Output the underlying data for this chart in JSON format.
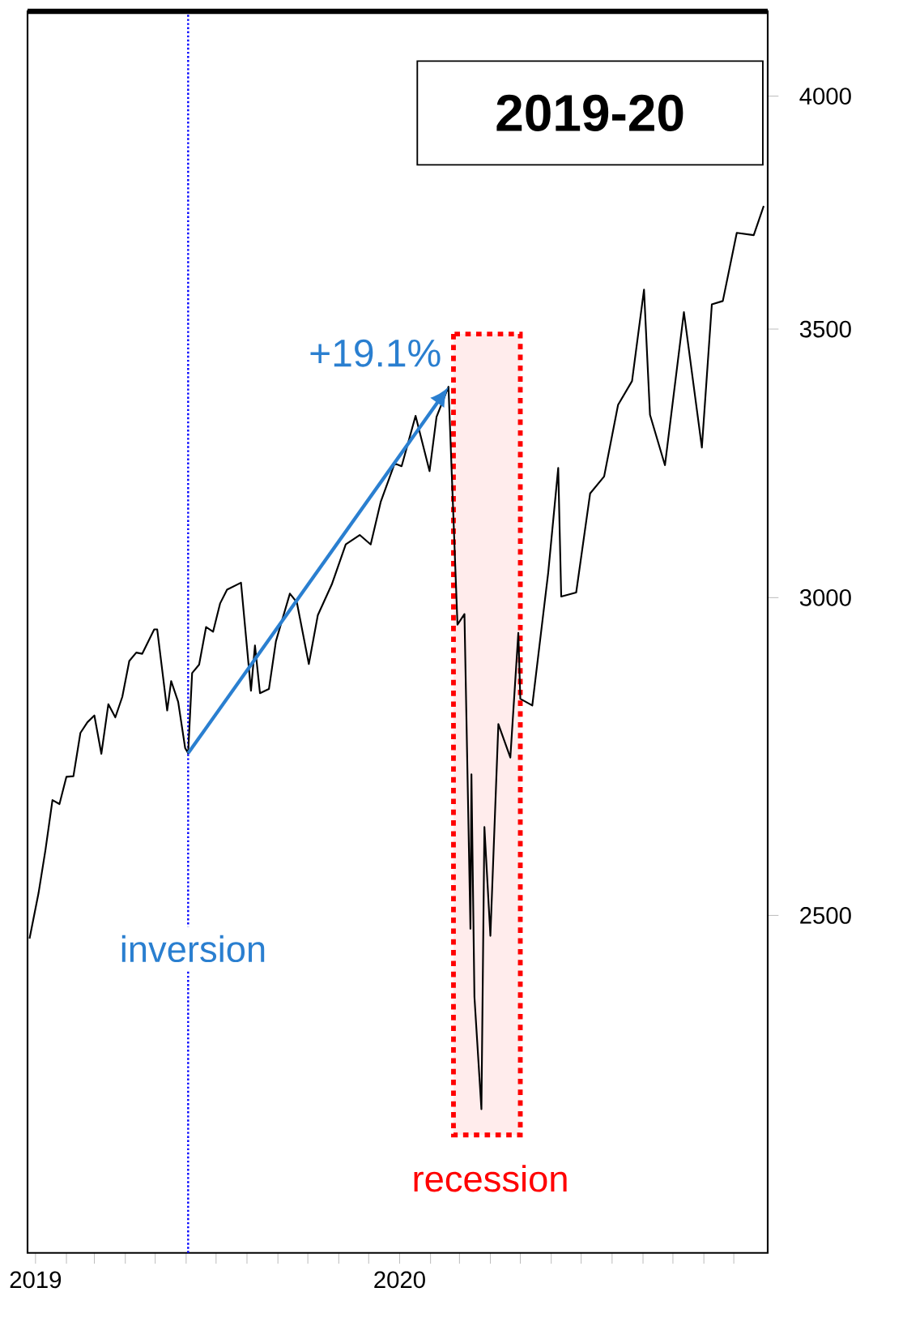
{
  "chart_data": {
    "type": "line",
    "title": "2019-20",
    "color": "#000000",
    "log": true,
    "x": [
      "2018-12-26",
      "2019-01-04",
      "2019-01-11",
      "2019-01-18",
      "2019-01-25",
      "2019-02-01",
      "2019-02-08",
      "2019-02-15",
      "2019-02-22",
      "2019-03-01",
      "2019-03-08",
      "2019-03-15",
      "2019-03-22",
      "2019-03-29",
      "2019-04-05",
      "2019-04-12",
      "2019-04-18",
      "2019-04-30",
      "2019-05-03",
      "2019-05-13",
      "2019-05-17",
      "2019-05-24",
      "2019-05-31",
      "2019-06-03",
      "2019-06-07",
      "2019-06-14",
      "2019-06-21",
      "2019-06-28",
      "2019-07-05",
      "2019-07-12",
      "2019-07-26",
      "2019-08-05",
      "2019-08-09",
      "2019-08-14",
      "2019-08-23",
      "2019-08-30",
      "2019-09-13",
      "2019-09-20",
      "2019-10-02",
      "2019-10-11",
      "2019-10-25",
      "2019-11-08",
      "2019-11-22",
      "2019-12-03",
      "2019-12-13",
      "2019-12-27",
      "2020-01-03",
      "2020-01-17",
      "2020-01-31",
      "2020-02-07",
      "2020-02-19",
      "2020-02-28",
      "2020-03-06",
      "2020-03-12",
      "2020-03-13",
      "2020-03-16",
      "2020-03-23",
      "2020-03-26",
      "2020-04-01",
      "2020-04-09",
      "2020-04-21",
      "2020-04-29",
      "2020-05-01",
      "2020-05-13",
      "2020-05-29",
      "2020-06-08",
      "2020-06-11",
      "2020-06-26",
      "2020-07-10",
      "2020-07-24",
      "2020-08-07",
      "2020-08-21",
      "2020-09-02",
      "2020-09-08",
      "2020-09-23",
      "2020-10-12",
      "2020-10-30",
      "2020-11-09",
      "2020-11-20",
      "2020-12-04",
      "2020-12-21",
      "2020-12-31"
    ],
    "values": [
      2467,
      2532,
      2596,
      2671,
      2665,
      2707,
      2708,
      2776,
      2793,
      2804,
      2743,
      2822,
      2801,
      2834,
      2893,
      2907,
      2905,
      2946,
      2946,
      2812,
      2860,
      2826,
      2752,
      2744,
      2873,
      2887,
      2950,
      2942,
      2990,
      3014,
      3026,
      2844,
      2919,
      2840,
      2847,
      2926,
      3007,
      2992,
      2888,
      2970,
      3023,
      3093,
      3110,
      3093,
      3169,
      3240,
      3235,
      3330,
      3226,
      3328,
      3386,
      2954,
      2972,
      2481,
      2711,
      2386,
      2237,
      2630,
      2471,
      2790,
      2737,
      2940,
      2831,
      2820,
      3044,
      3232,
      3002,
      3009,
      3185,
      3216,
      3351,
      3397,
      3580,
      3332,
      3237,
      3534,
      3270,
      3550,
      3557,
      3699,
      3694,
      3756
    ],
    "xlim": [
      "2018-12-24",
      "2021-01-04"
    ],
    "xticks": [
      {
        "value": "2019-01-01",
        "label": "2019"
      },
      {
        "value": "2019-02-01",
        "label": null
      },
      {
        "value": "2019-03-01",
        "label": null
      },
      {
        "value": "2019-04-01",
        "label": null
      },
      {
        "value": "2019-05-01",
        "label": null
      },
      {
        "value": "2019-06-01",
        "label": null
      },
      {
        "value": "2019-07-01",
        "label": null
      },
      {
        "value": "2019-08-01",
        "label": null
      },
      {
        "value": "2019-09-01",
        "label": null
      },
      {
        "value": "2019-10-01",
        "label": null
      },
      {
        "value": "2019-11-01",
        "label": null
      },
      {
        "value": "2019-12-01",
        "label": null
      },
      {
        "value": "2020-01-01",
        "label": "2020"
      },
      {
        "value": "2020-02-01",
        "label": null
      },
      {
        "value": "2020-03-01",
        "label": null
      },
      {
        "value": "2020-04-01",
        "label": null
      },
      {
        "value": "2020-05-01",
        "label": null
      },
      {
        "value": "2020-06-01",
        "label": null
      },
      {
        "value": "2020-07-01",
        "label": null
      },
      {
        "value": "2020-08-01",
        "label": null
      },
      {
        "value": "2020-09-01",
        "label": null
      },
      {
        "value": "2020-10-01",
        "label": null
      },
      {
        "value": "2020-11-01",
        "label": null
      },
      {
        "value": "2020-12-01",
        "label": null
      }
    ],
    "ylim": [
      2060,
      4200
    ],
    "yticks": [
      2500,
      3000,
      3500,
      4000
    ],
    "ref_lines": [
      {
        "axis": "x",
        "value": "2019-06-03",
        "label": "inversion",
        "color": "#0000ff",
        "line_style": "dotted"
      }
    ],
    "bands": [
      {
        "axis": "x",
        "from": "2020-02-24",
        "to": "2020-05-01",
        "label": "recession",
        "color": "#ff0000"
      }
    ],
    "annotations": [
      {
        "text": "+19.1%",
        "x": "2020-02-19",
        "y": 3386
      }
    ]
  }
}
